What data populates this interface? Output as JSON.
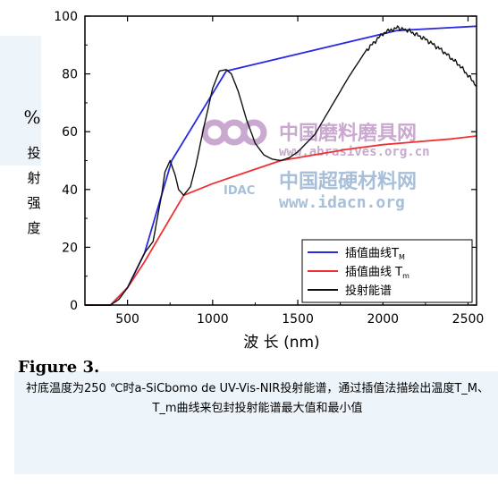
{
  "chart_data": {
    "type": "line",
    "title": "",
    "xlabel": "波 长 (nm)",
    "ylabel_unit": "%",
    "ylabel": "投射强度",
    "xlim": [
      250,
      2550
    ],
    "ylim": [
      0,
      100
    ],
    "xticks": [
      500,
      1000,
      1500,
      2000,
      2500
    ],
    "yticks": [
      0,
      20,
      40,
      60,
      80,
      100
    ],
    "legend_position": "bottom-right",
    "series": [
      {
        "name": "插值曲线T_M",
        "color": "#2a2ae6",
        "x": [
          250,
          400,
          500,
          600,
          760,
          1080,
          2080,
          2550
        ],
        "y": [
          0,
          0,
          6,
          18,
          50,
          81,
          95,
          96.5
        ]
      },
      {
        "name": "插值曲线 T_m",
        "color": "#ef3030",
        "x": [
          250,
          400,
          500,
          600,
          700,
          830,
          1000,
          1200,
          1400,
          1600,
          1800,
          2000,
          2200,
          2400,
          2550
        ],
        "y": [
          0,
          0,
          6,
          15,
          25,
          38,
          42,
          46,
          50,
          52,
          54,
          55.5,
          56.5,
          57.5,
          58.5
        ]
      },
      {
        "name": "投射能谱",
        "color": "#111111",
        "x": [
          250,
          350,
          400,
          450,
          500,
          550,
          600,
          650,
          700,
          720,
          750,
          780,
          800,
          830,
          870,
          900,
          950,
          1000,
          1040,
          1080,
          1110,
          1150,
          1200,
          1250,
          1300,
          1350,
          1400,
          1450,
          1500,
          1600,
          1700,
          1800,
          1900,
          2000,
          2080,
          2150,
          2250,
          2350,
          2450,
          2550
        ],
        "y": [
          0,
          0,
          0,
          2,
          6,
          12,
          18,
          22,
          38,
          46,
          50,
          45,
          40,
          38,
          41,
          48,
          62,
          75,
          81,
          81.5,
          80,
          74,
          64,
          56,
          52,
          50.5,
          50,
          51,
          53,
          59,
          69,
          79,
          88,
          94,
          96,
          95,
          92,
          88,
          83,
          76
        ]
      }
    ]
  },
  "watermark": {
    "line1": "中国磨料磨具网",
    "line2": "www.abrasives.org.cn",
    "line3": "中国超硬材料网",
    "line4": "www.idacn.org",
    "logo_text": "IDAC",
    "color": "#c9a9cf",
    "color2": "#a8bfd9"
  },
  "caption": {
    "figure_label": "Figure 3.",
    "text": "衬底温度为250 ℃时a-SiCbomo de UV-Vis-NIR投射能谱，通过插值法描绘出温度T_M、T_m曲线来包封投射能谱最大值和最小值"
  }
}
